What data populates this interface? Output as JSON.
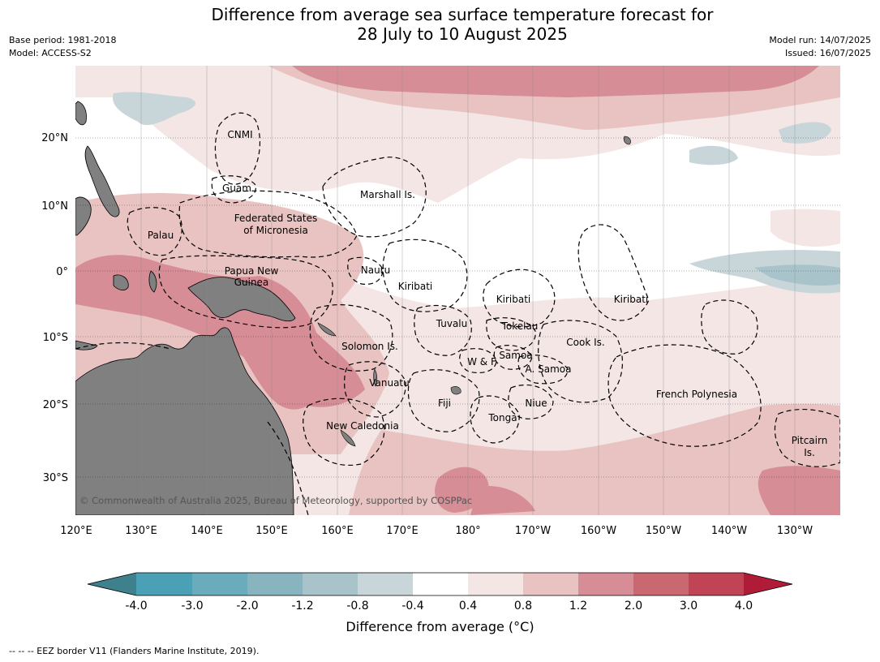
{
  "title_line1": "Difference from average sea surface temperature forecast for",
  "title_line2": "28 July to 10 August 2025",
  "meta_left": [
    "Base period: 1981-2018",
    "Model: ACCESS-S2"
  ],
  "meta_right": [
    "Model run: 14/07/2025",
    "Issued: 16/07/2025"
  ],
  "lat_labels": [
    "20°N",
    "10°N",
    "0°",
    "10°S",
    "20°S",
    "30°S"
  ],
  "lon_labels": [
    "120°E",
    "130°E",
    "140°E",
    "150°E",
    "160°E",
    "170°E",
    "180°",
    "170°W",
    "160°W",
    "150°W",
    "140°W",
    "130°W"
  ],
  "regions": [
    "CNMI",
    "Guam",
    "Marshall Is.",
    "Federated States",
    "of Micronesia",
    "Palau",
    "Papua New",
    "Guinea",
    "Nauru",
    "Kiribati",
    "Kiribati",
    "Kiribati",
    "Tuvalu",
    "Tokelau",
    "Solomon Is.",
    "Cook Is.",
    "W & F",
    "Samoa",
    "A. Samoa",
    "Vanuatu",
    "Fiji",
    "Niue",
    "French Polynesia",
    "Tonga",
    "New Caledonia",
    "Pitcairn",
    "Is."
  ],
  "copyright": "© Commonwealth of Australia 2025, Bureau of Meteorology, supported by COSPPac",
  "colorbar": {
    "ticks": [
      "-4.0",
      "-3.0",
      "-2.0",
      "-1.2",
      "-0.8",
      "-0.4",
      "0.4",
      "0.8",
      "1.2",
      "2.0",
      "3.0",
      "4.0"
    ],
    "colors": [
      "#3e808c",
      "#4aa0b4",
      "#6aacbc",
      "#88b4bf",
      "#a8c4ca",
      "#c8d6da",
      "#ffffff",
      "#f4e6e5",
      "#e8c3c1",
      "#d68d95",
      "#c96870",
      "#c04456",
      "#b01c38"
    ],
    "label": "Difference from average (°C)"
  },
  "footnote": "--  --  -- EEZ border V11 (Flanders Marine Institute, 2019)."
}
